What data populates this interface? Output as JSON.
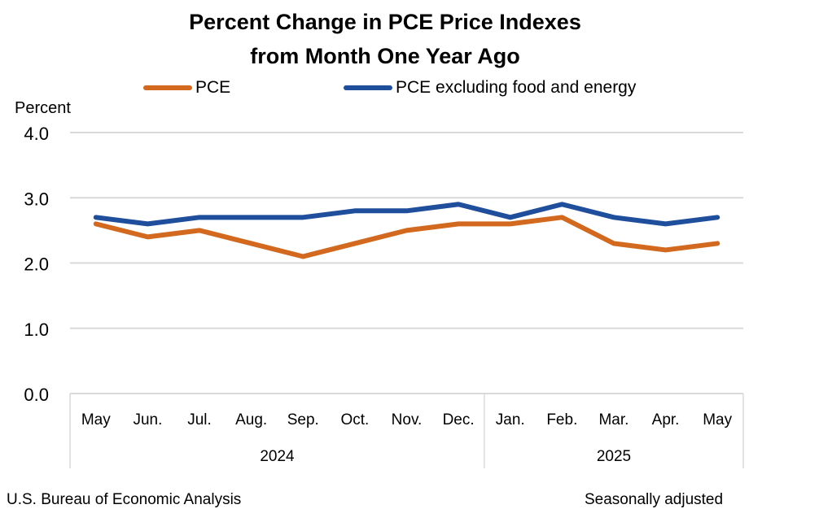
{
  "chart_data": {
    "type": "line",
    "title": "Percent Change in PCE Price Indexes",
    "subtitle": "from Month One Year Ago",
    "ylabel": "Percent",
    "xlabel": "",
    "ylim": [
      0,
      4
    ],
    "yticks": [
      "0.0",
      "1.0",
      "2.0",
      "3.0",
      "4.0"
    ],
    "ytick_values": [
      0,
      1,
      2,
      3,
      4
    ],
    "grid": true,
    "legend_position": "top",
    "categories": [
      "May",
      "Jun.",
      "Jul.",
      "Aug.",
      "Sep.",
      "Oct.",
      "Nov.",
      "Dec.",
      "Jan.",
      "Feb.",
      "Mar.",
      "Apr.",
      "May"
    ],
    "year_groups": [
      {
        "label": "2024",
        "count": 8
      },
      {
        "label": "2025",
        "count": 5
      }
    ],
    "series": [
      {
        "name": "PCE",
        "color": "#D2691E",
        "values": [
          2.6,
          2.4,
          2.5,
          2.3,
          2.1,
          2.3,
          2.5,
          2.6,
          2.6,
          2.7,
          2.3,
          2.2,
          2.3
        ]
      },
      {
        "name": "PCE excluding food and energy",
        "color": "#1F4E9C",
        "values": [
          2.7,
          2.6,
          2.7,
          2.7,
          2.7,
          2.8,
          2.8,
          2.9,
          2.7,
          2.9,
          2.7,
          2.6,
          2.7
        ]
      }
    ]
  },
  "footer": {
    "source": "U.S. Bureau of Economic Analysis",
    "note": "Seasonally adjusted"
  }
}
